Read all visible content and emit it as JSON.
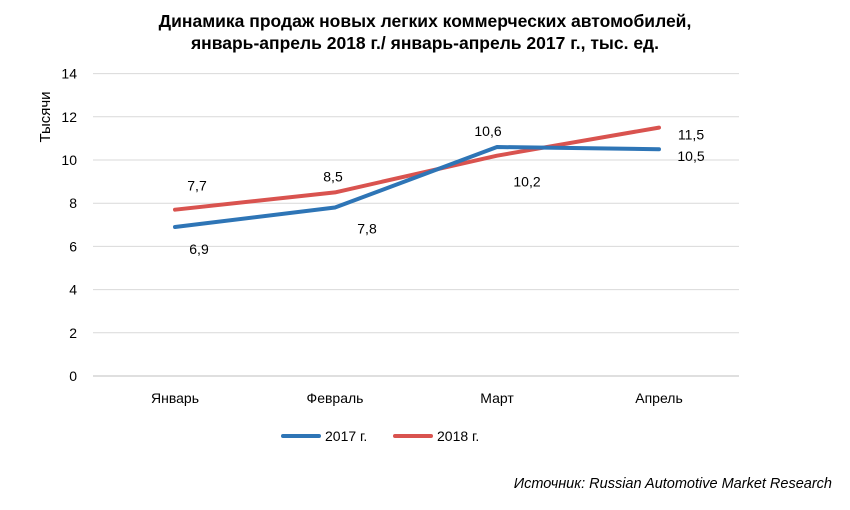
{
  "title_line1": "Динамика продаж новых легких коммерческих автомобилей,",
  "title_line2": "январь-апрель 2018 г./ январь-апрель 2017 г., тыс. ед.",
  "source": "Источник: Russian Automotive Market Research",
  "chart_data": {
    "type": "line",
    "categories": [
      "Январь",
      "Февраль",
      "Март",
      "Апрель"
    ],
    "ylabel": "Тысячи",
    "xlabel": "",
    "ylim": [
      0,
      14
    ],
    "yticks": [
      0,
      2,
      4,
      6,
      8,
      10,
      12,
      14
    ],
    "grid": true,
    "legend_position": "bottom",
    "series": [
      {
        "name": "2017 г.",
        "color": "#2E75B6",
        "values": [
          6.9,
          7.8,
          10.6,
          10.5
        ],
        "labels": [
          "6,9",
          "7,8",
          "10,6",
          "10,5"
        ]
      },
      {
        "name": "2018 г.",
        "color": "#D9534F",
        "values": [
          7.7,
          8.5,
          10.2,
          11.5
        ],
        "labels": [
          "7,7",
          "8,5",
          "10,2",
          "11,5"
        ]
      }
    ]
  }
}
